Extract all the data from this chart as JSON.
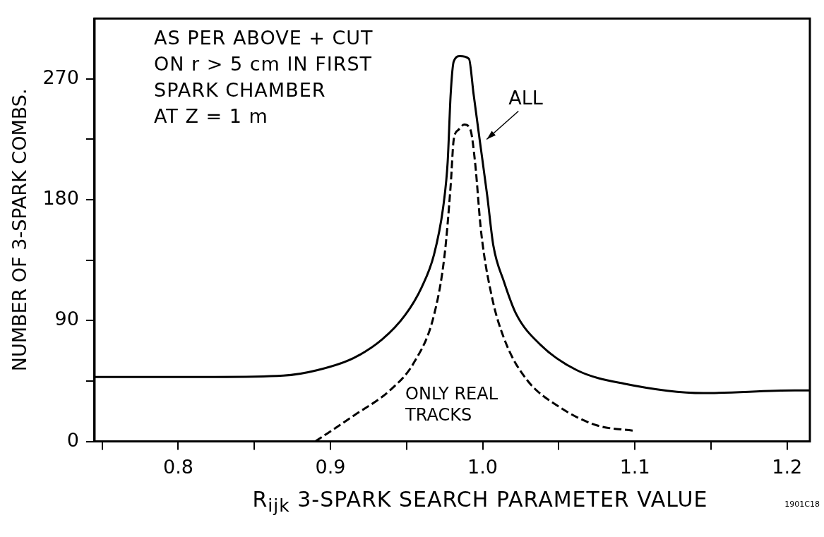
{
  "chart_data": {
    "type": "line",
    "xlabel": "R$_{ijk}$ 3-SPARK SEARCH PARAMETER VALUE",
    "ylabel": "NUMBER OF 3-SPARK COMBS.",
    "annotations": [
      "AS PER ABOVE + CUT\nON r > 5 cm IN FIRST\nSPARK CHAMBER\nAT Z = 1 m",
      "1901C18"
    ],
    "xlim": [
      0.745,
      1.215
    ],
    "ylim": [
      0,
      315
    ],
    "xticks": [
      {
        "value": 0.75,
        "label": null
      },
      0.8,
      {
        "value": 0.85,
        "label": null
      },
      0.9,
      {
        "value": 0.95,
        "label": null
      },
      {
        "value": 1,
        "label": "1.0"
      },
      {
        "value": 1.05,
        "label": null
      },
      1.1,
      {
        "value": 1.15,
        "label": null
      },
      1.2
    ],
    "yticks": [
      0,
      {
        "value": 45,
        "label": null
      },
      90,
      {
        "value": 135,
        "label": null
      },
      180,
      {
        "value": 225,
        "label": null
      },
      270
    ],
    "grid": false,
    "legend": false,
    "marker": "none",
    "series": [
      {
        "name": "ALL",
        "color": "#000000",
        "line_style": "solid",
        "x": [
          0.745,
          0.824,
          0.869,
          0.891,
          0.915,
          0.934,
          0.949,
          0.96,
          0.968,
          0.974,
          0.977,
          0.979,
          0.981,
          0.985,
          0.991,
          0.994,
          0.998,
          1.003,
          1.007,
          1.014,
          1.022,
          1.038,
          1.062,
          1.093,
          1.145,
          1.205,
          1.215
        ],
        "values": [
          48,
          48,
          49,
          53,
          62,
          76,
          94,
          115,
          139,
          174,
          208,
          259,
          283,
          287,
          285,
          259,
          225,
          183,
          146,
          119,
          95,
          72,
          53,
          43,
          36,
          38,
          38
        ]
      },
      {
        "name": "ONLY REAL TRACKS",
        "color": "#000000",
        "line_style": "dashed",
        "x": [
          0.89,
          0.915,
          0.94,
          0.955,
          0.968,
          0.975,
          0.979,
          0.981,
          0.984,
          0.988,
          0.992,
          0.995,
          0.999,
          1.006,
          1.015,
          1.029,
          1.05,
          1.075,
          1.099
        ],
        "values": [
          0,
          19,
          39,
          59,
          94,
          139,
          191,
          225,
          232,
          236,
          232,
          208,
          156,
          108,
          74,
          46,
          26,
          12,
          8
        ]
      }
    ]
  }
}
